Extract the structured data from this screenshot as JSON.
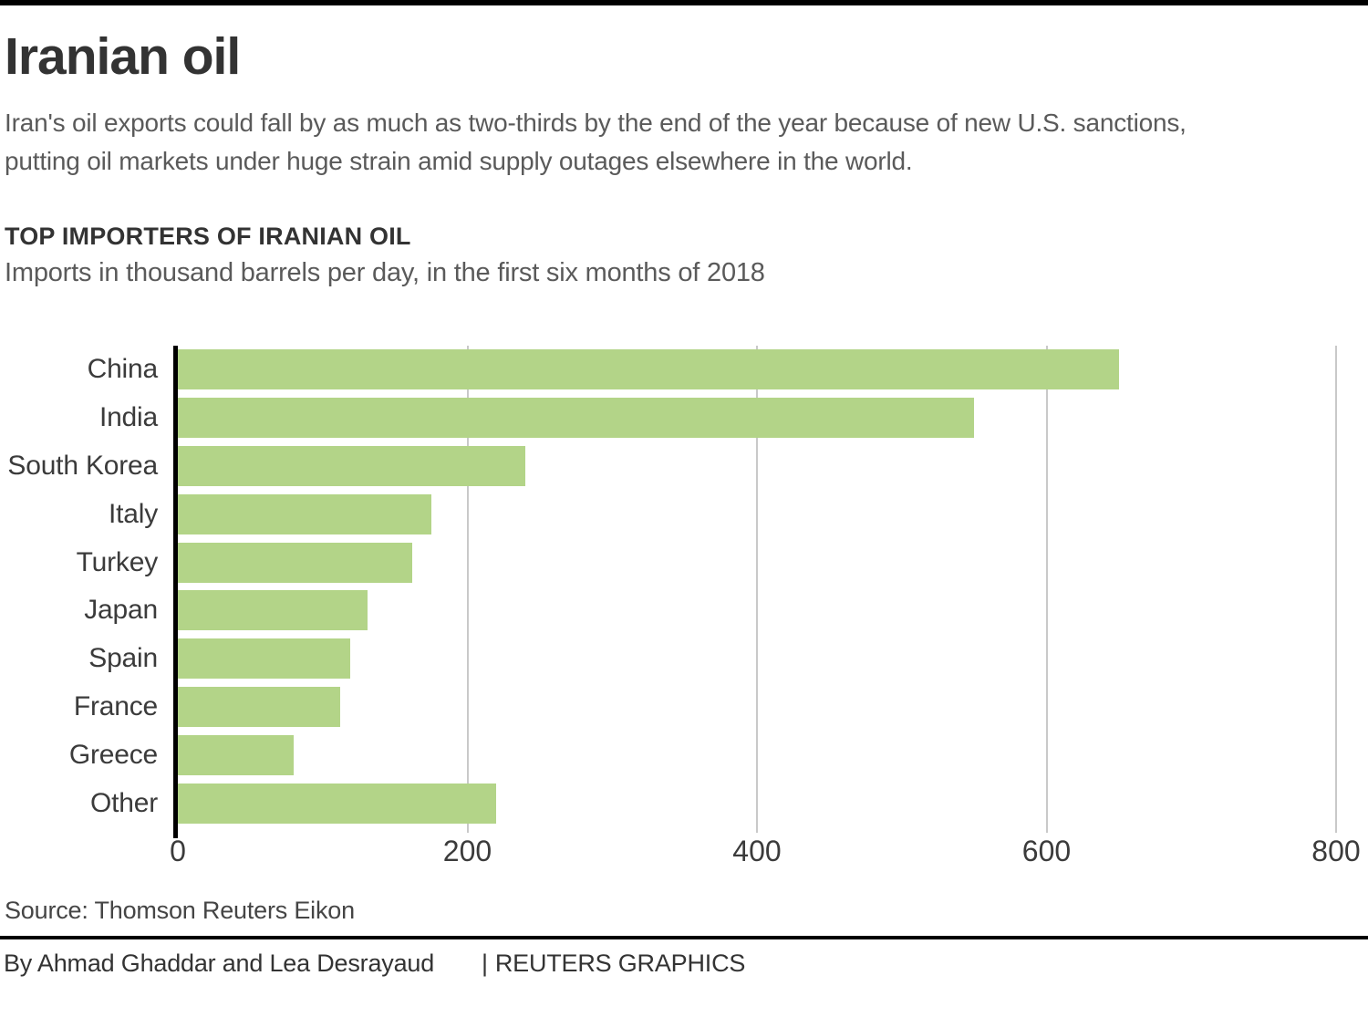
{
  "page": {
    "title": "Iranian oil",
    "dek_line1": "Iran's oil exports could fall by as much as two-thirds by the end of the year because of new U.S. sanctions,",
    "dek_line2": "putting oil markets under huge strain amid supply outages elsewhere in the world."
  },
  "chart": {
    "kicker": "TOP IMPORTERS OF IRANIAN OIL",
    "subtitle": "Imports in thousand barrels per day, in the first six months of 2018"
  },
  "chart_data": {
    "type": "bar",
    "orientation": "horizontal",
    "title": "TOP IMPORTERS OF IRANIAN OIL",
    "subtitle": "Imports in thousand barrels per day, in the first six months of 2018",
    "categories": [
      "China",
      "India",
      "South Korea",
      "Italy",
      "Turkey",
      "Japan",
      "Spain",
      "France",
      "Greece",
      "Other"
    ],
    "values": [
      650,
      550,
      240,
      175,
      162,
      131,
      119,
      112,
      80,
      220
    ],
    "xlabel": "",
    "ylabel": "",
    "xlim": [
      0,
      800
    ],
    "xticks": [
      0,
      200,
      400,
      600,
      800
    ],
    "grid": true,
    "legend": false,
    "bar_color": "#b3d488",
    "axis_color": "#000000",
    "gridline_color": "#c9c9c9"
  },
  "footer": {
    "source": "Source: Thomson Reuters Eikon",
    "byline": "By Ahmad Ghaddar and Lea Desrayaud",
    "separator": "|",
    "brand": "REUTERS GRAPHICS"
  },
  "colors": {
    "top_rule": "#000000",
    "divider": "#000000",
    "title_text": "#333333",
    "body_text": "#5a5a5a"
  }
}
